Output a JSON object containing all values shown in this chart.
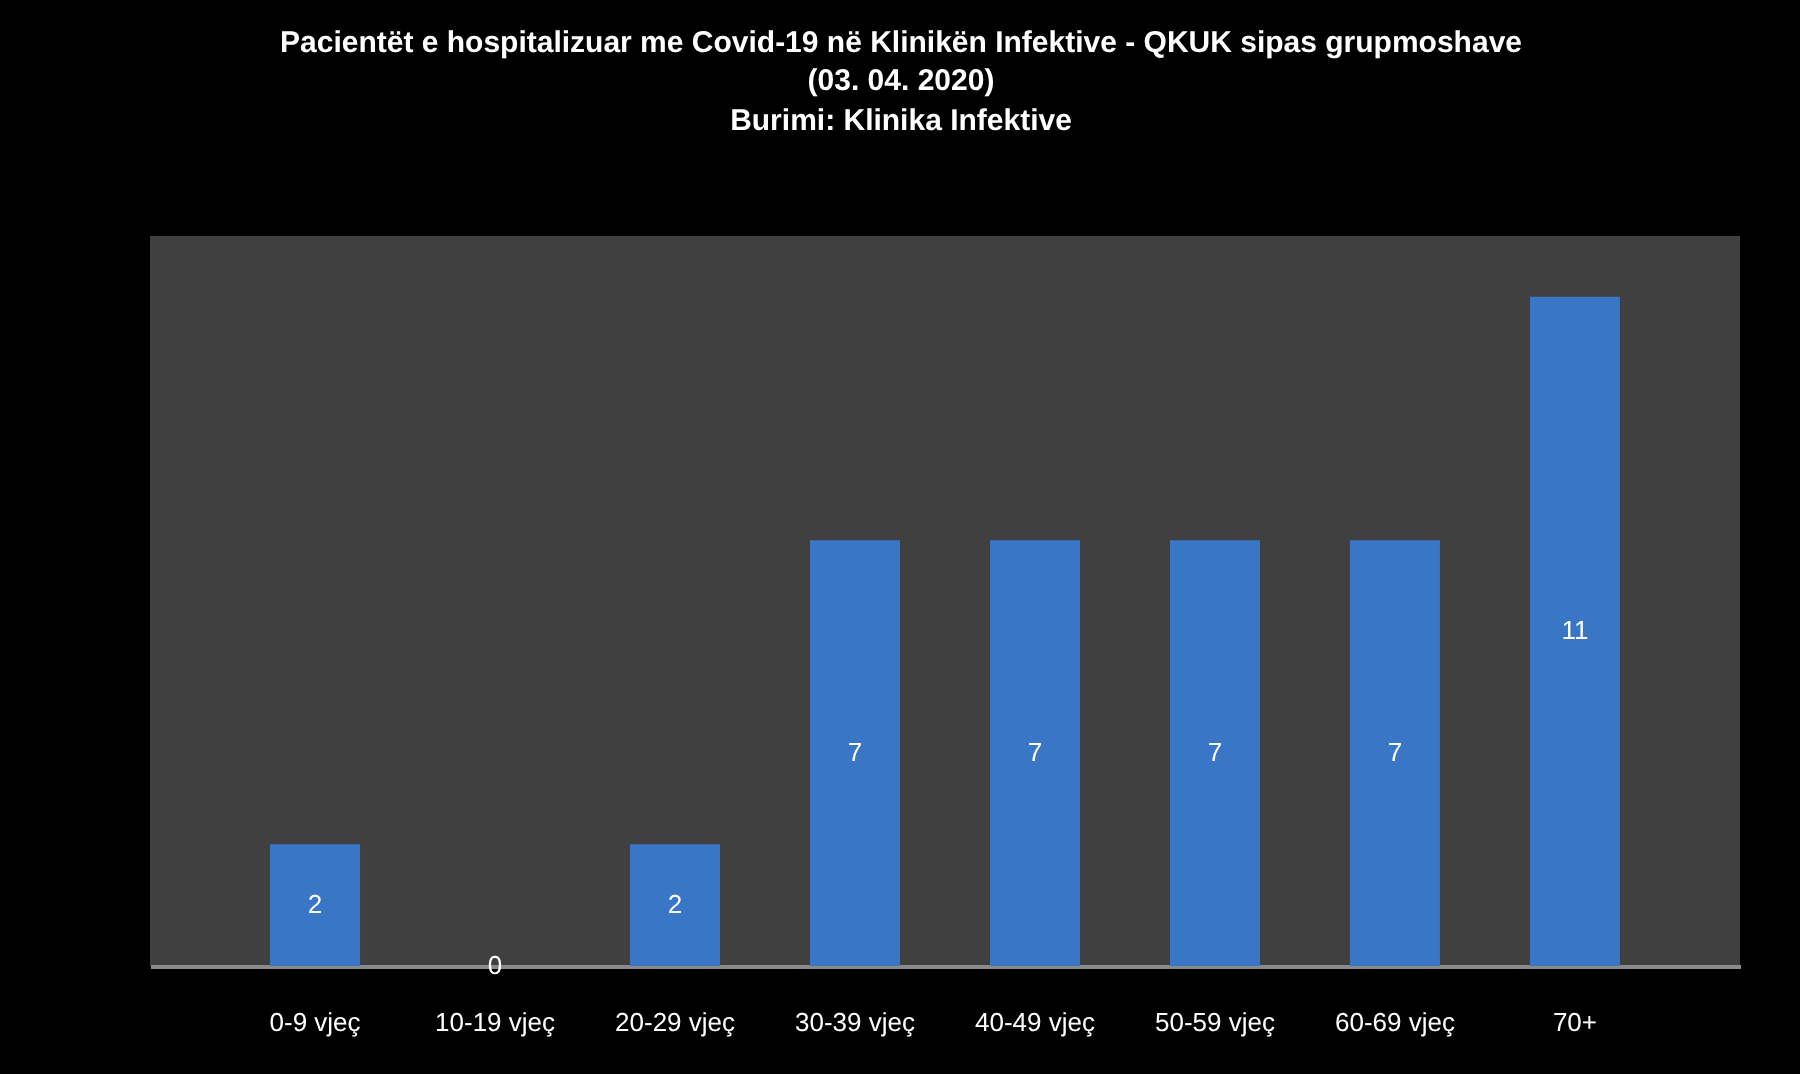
{
  "chart_data": {
    "type": "bar",
    "title": "Pacientët e hospitalizuar me Covid-19 në Klinikën Infektive - QKUK sipas grupmoshave",
    "subtitle": "(03. 04. 2020)",
    "annotations": [
      "Burimi: Klinika Infektive"
    ],
    "categories": [
      "0-9 vjeç",
      "10-19 vjeç",
      "20-29 vjeç",
      "30-39 vjeç",
      "40-49 vjeç",
      "50-59 vjeç",
      "60-69 vjeç",
      "70+"
    ],
    "values": [
      2,
      0,
      2,
      7,
      7,
      7,
      7,
      11
    ],
    "color": "#3a76c6",
    "data_labels": true
  }
}
